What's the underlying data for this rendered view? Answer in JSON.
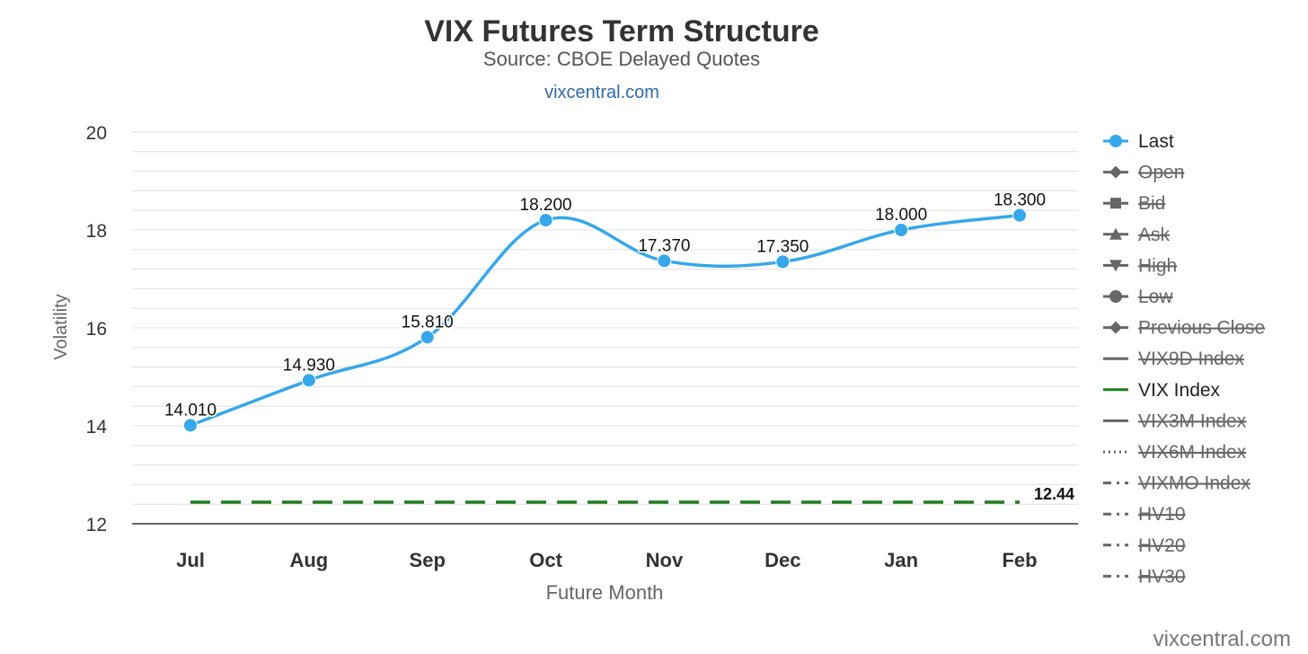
{
  "chart_data": {
    "type": "line",
    "title": "VIX Futures Term Structure",
    "subtitle": "Source: CBOE Delayed Quotes",
    "credit_link": "vixcentral.com",
    "watermark": "vixcentral.com",
    "xlabel": "Future Month",
    "ylabel": "Volatility",
    "categories": [
      "Jul",
      "Aug",
      "Sep",
      "Oct",
      "Nov",
      "Dec",
      "Jan",
      "Feb"
    ],
    "ylim": [
      12,
      20
    ],
    "yticks": [
      "12",
      "14",
      "16",
      "18",
      "20"
    ],
    "minor_grid_step": 0.4,
    "grid": true,
    "legend_position": "right",
    "series": [
      {
        "name": "Last",
        "values": [
          14.01,
          14.93,
          15.81,
          18.2,
          17.37,
          17.35,
          18.0,
          18.3
        ],
        "data_labels": [
          "14.010",
          "14.930",
          "15.810",
          "18.200",
          "17.370",
          "17.350",
          "18.000",
          "18.300"
        ],
        "color": "#35a7ea",
        "smooth": true
      },
      {
        "name": "VIX Index",
        "values": [
          12.44,
          12.44,
          12.44,
          12.44,
          12.44,
          12.44,
          12.44,
          12.44
        ],
        "end_label": "12.44",
        "color": "#1e7d1e",
        "dash": true
      }
    ],
    "legend": [
      {
        "label": "Last",
        "symbol": "circle",
        "active": true,
        "color": "#35a7ea"
      },
      {
        "label": "Open",
        "symbol": "diamond",
        "active": false,
        "color": "#666666"
      },
      {
        "label": "Bid",
        "symbol": "square",
        "active": false,
        "color": "#666666"
      },
      {
        "label": "Ask",
        "symbol": "triangle",
        "active": false,
        "color": "#666666"
      },
      {
        "label": "High",
        "symbol": "triangle-down",
        "active": false,
        "color": "#666666"
      },
      {
        "label": "Low",
        "symbol": "circle",
        "active": false,
        "color": "#666666"
      },
      {
        "label": "Previous Close",
        "symbol": "diamond",
        "active": false,
        "color": "#666666"
      },
      {
        "label": "VIX9D Index",
        "symbol": "line",
        "active": false,
        "color": "#666666"
      },
      {
        "label": "VIX Index",
        "symbol": "line",
        "active": true,
        "color": "#1e7d1e"
      },
      {
        "label": "VIX3M Index",
        "symbol": "line",
        "active": false,
        "color": "#666666"
      },
      {
        "label": "VIX6M Index",
        "symbol": "dotted",
        "active": false,
        "color": "#666666"
      },
      {
        "label": "VIXMO Index",
        "symbol": "dashdot",
        "active": false,
        "color": "#666666"
      },
      {
        "label": "HV10",
        "symbol": "dashdot",
        "active": false,
        "color": "#666666"
      },
      {
        "label": "HV20",
        "symbol": "dashdot",
        "active": false,
        "color": "#666666"
      },
      {
        "label": "HV30",
        "symbol": "dashdot",
        "active": false,
        "color": "#666666"
      }
    ]
  }
}
